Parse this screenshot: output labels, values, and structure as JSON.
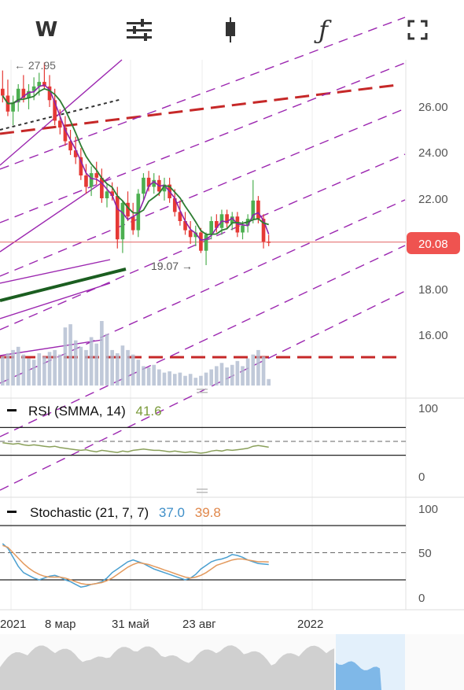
{
  "toolbar": {
    "interval_label": "W",
    "buttons": [
      {
        "name": "interval-button",
        "icon": "letter-w"
      },
      {
        "name": "indicators-button",
        "icon": "sliders-icon"
      },
      {
        "name": "chart-type-button",
        "icon": "candlestick-icon"
      },
      {
        "name": "function-button",
        "icon": "function-icon"
      },
      {
        "name": "fullscreen-button",
        "icon": "fullscreen-icon"
      }
    ]
  },
  "chart_data": [
    {
      "type": "candlestick",
      "title": "",
      "ylim": [
        13.8,
        28.2
      ],
      "yticks": [
        "26.00",
        "24.00",
        "22.00",
        "20.00",
        "18.00",
        "16.00"
      ],
      "ytick_values": [
        26,
        24,
        22,
        20,
        18,
        16
      ],
      "x_tick_labels": [
        "2021",
        "8 мар",
        "31 май",
        "23 авг",
        "2022"
      ],
      "last_price": "20.08",
      "last_price_value": 20.08,
      "high_marker": "← 27.95",
      "low_marker": "19.07 →",
      "colors": {
        "up": "#4caf50",
        "down": "#e53935",
        "ma_purple": "#8e24aa",
        "ma_green": "#2e7d32",
        "price_line": "#e57373",
        "volume": "#b0bcd0",
        "channel": "#9c27b0",
        "dashed_red": "#c62828"
      },
      "candles": [
        {
          "o": 26.8,
          "h": 27.6,
          "l": 26.2,
          "c": 26.5
        },
        {
          "o": 26.5,
          "h": 27.2,
          "l": 25.6,
          "c": 25.8
        },
        {
          "o": 25.8,
          "h": 26.5,
          "l": 25.2,
          "c": 26.2
        },
        {
          "o": 26.2,
          "h": 27.0,
          "l": 25.8,
          "c": 26.8
        },
        {
          "o": 26.8,
          "h": 27.4,
          "l": 26.2,
          "c": 26.4
        },
        {
          "o": 26.4,
          "h": 27.0,
          "l": 25.9,
          "c": 26.7
        },
        {
          "o": 26.7,
          "h": 27.3,
          "l": 26.3,
          "c": 26.9
        },
        {
          "o": 26.9,
          "h": 27.5,
          "l": 26.5,
          "c": 27.1
        },
        {
          "o": 27.1,
          "h": 27.95,
          "l": 26.8,
          "c": 26.9
        },
        {
          "o": 26.9,
          "h": 27.4,
          "l": 26.0,
          "c": 26.3
        },
        {
          "o": 26.3,
          "h": 26.8,
          "l": 25.2,
          "c": 25.4
        },
        {
          "o": 25.4,
          "h": 25.9,
          "l": 24.8,
          "c": 25.1
        },
        {
          "o": 25.1,
          "h": 25.6,
          "l": 24.3,
          "c": 24.5
        },
        {
          "o": 24.5,
          "h": 25.0,
          "l": 23.9,
          "c": 24.1
        },
        {
          "o": 24.1,
          "h": 24.7,
          "l": 23.5,
          "c": 23.8
        },
        {
          "o": 23.8,
          "h": 24.2,
          "l": 22.8,
          "c": 23.0
        },
        {
          "o": 23.0,
          "h": 23.5,
          "l": 22.2,
          "c": 22.5
        },
        {
          "o": 22.5,
          "h": 23.4,
          "l": 22.1,
          "c": 23.1
        },
        {
          "o": 23.1,
          "h": 23.6,
          "l": 22.6,
          "c": 22.9
        },
        {
          "o": 22.9,
          "h": 23.3,
          "l": 21.8,
          "c": 22.0
        },
        {
          "o": 22.0,
          "h": 22.6,
          "l": 21.6,
          "c": 22.3
        },
        {
          "o": 22.3,
          "h": 22.7,
          "l": 21.9,
          "c": 22.1
        },
        {
          "o": 22.1,
          "h": 22.5,
          "l": 19.8,
          "c": 20.2
        },
        {
          "o": 20.2,
          "h": 21.9,
          "l": 19.6,
          "c": 21.8
        },
        {
          "o": 21.8,
          "h": 22.3,
          "l": 21.0,
          "c": 21.2
        },
        {
          "o": 21.2,
          "h": 21.8,
          "l": 20.4,
          "c": 20.6
        },
        {
          "o": 20.6,
          "h": 22.4,
          "l": 20.3,
          "c": 22.2
        },
        {
          "o": 22.2,
          "h": 23.1,
          "l": 21.9,
          "c": 22.9
        },
        {
          "o": 22.9,
          "h": 23.2,
          "l": 22.3,
          "c": 22.5
        },
        {
          "o": 22.5,
          "h": 23.1,
          "l": 22.2,
          "c": 22.8
        },
        {
          "o": 22.8,
          "h": 23.0,
          "l": 22.1,
          "c": 22.3
        },
        {
          "o": 22.3,
          "h": 22.9,
          "l": 21.9,
          "c": 22.6
        },
        {
          "o": 22.6,
          "h": 22.9,
          "l": 21.8,
          "c": 22.0
        },
        {
          "o": 22.0,
          "h": 22.4,
          "l": 21.2,
          "c": 21.4
        },
        {
          "o": 21.4,
          "h": 21.9,
          "l": 20.8,
          "c": 21.0
        },
        {
          "o": 21.0,
          "h": 21.4,
          "l": 20.4,
          "c": 20.6
        },
        {
          "o": 20.6,
          "h": 21.0,
          "l": 20.0,
          "c": 20.3
        },
        {
          "o": 20.3,
          "h": 20.8,
          "l": 19.9,
          "c": 20.5
        },
        {
          "o": 20.5,
          "h": 20.7,
          "l": 19.6,
          "c": 19.7
        },
        {
          "o": 19.7,
          "h": 20.5,
          "l": 19.07,
          "c": 20.4
        },
        {
          "o": 20.4,
          "h": 21.2,
          "l": 20.2,
          "c": 21.0
        },
        {
          "o": 21.0,
          "h": 21.3,
          "l": 20.5,
          "c": 20.7
        },
        {
          "o": 20.7,
          "h": 21.5,
          "l": 20.4,
          "c": 21.3
        },
        {
          "o": 21.3,
          "h": 21.5,
          "l": 20.7,
          "c": 20.9
        },
        {
          "o": 20.9,
          "h": 21.4,
          "l": 20.6,
          "c": 21.2
        },
        {
          "o": 21.2,
          "h": 21.4,
          "l": 20.3,
          "c": 20.5
        },
        {
          "o": 20.5,
          "h": 21.0,
          "l": 20.2,
          "c": 20.8
        },
        {
          "o": 20.8,
          "h": 21.3,
          "l": 20.5,
          "c": 21.1
        },
        {
          "o": 21.1,
          "h": 22.8,
          "l": 20.9,
          "c": 21.9
        },
        {
          "o": 21.9,
          "h": 22.1,
          "l": 20.9,
          "c": 21.1
        },
        {
          "o": 21.1,
          "h": 21.3,
          "l": 19.8,
          "c": 20.1
        },
        {
          "o": 20.1,
          "h": 20.4,
          "l": 19.9,
          "c": 20.08
        }
      ],
      "volume": [
        0.45,
        0.5,
        0.55,
        0.6,
        0.48,
        0.42,
        0.4,
        0.5,
        0.45,
        0.52,
        0.55,
        0.48,
        0.9,
        0.95,
        0.7,
        0.6,
        0.55,
        0.75,
        0.65,
        1.0,
        0.8,
        0.55,
        0.5,
        0.62,
        0.55,
        0.48,
        0.4,
        0.3,
        0.28,
        0.32,
        0.25,
        0.2,
        0.22,
        0.18,
        0.2,
        0.15,
        0.18,
        0.12,
        0.15,
        0.2,
        0.25,
        0.3,
        0.35,
        0.28,
        0.32,
        0.38,
        0.3,
        0.42,
        0.48,
        0.55,
        0.45,
        0.1
      ]
    },
    {
      "type": "line",
      "name": "rsi-panel",
      "title": "RSI (SMMA, 14)",
      "value_label": "41.6",
      "ylim": [
        0,
        100
      ],
      "yticks": [
        "100",
        "0"
      ],
      "levels": [
        70,
        30
      ],
      "series": [
        {
          "values": [
            48,
            47,
            46,
            47,
            45,
            44,
            45,
            44,
            43,
            42,
            43,
            41,
            40,
            39,
            38,
            37,
            38,
            36,
            35,
            37,
            36,
            35,
            34,
            36,
            35,
            37,
            38,
            39,
            38,
            37,
            37,
            36,
            35,
            36,
            35,
            34,
            35,
            34,
            33,
            34,
            36,
            37,
            36,
            38,
            37,
            38,
            39,
            40,
            43,
            44,
            43,
            41.6
          ]
        }
      ]
    },
    {
      "type": "line",
      "name": "stochastic-panel",
      "title": "Stochastic (21, 7, 7)",
      "k_label": "37.0",
      "d_label": "39.8",
      "ylim": [
        0,
        100
      ],
      "yticks": [
        "100",
        "50",
        "0"
      ],
      "levels": [
        80,
        50,
        20
      ],
      "series": [
        {
          "values": [
            60,
            55,
            45,
            35,
            28,
            25,
            22,
            20,
            22,
            24,
            25,
            23,
            20,
            18,
            15,
            12,
            13,
            15,
            16,
            18,
            22,
            28,
            32,
            36,
            40,
            42,
            40,
            38,
            35,
            32,
            30,
            28,
            26,
            24,
            22,
            20,
            22,
            26,
            32,
            36,
            40,
            42,
            43,
            45,
            48,
            47,
            45,
            42,
            40,
            38,
            37.5,
            37.0
          ]
        },
        {
          "values": [
            58,
            56,
            50,
            44,
            38,
            33,
            29,
            26,
            24,
            23,
            23,
            23,
            22,
            20,
            18,
            16,
            15,
            15,
            16,
            17,
            19,
            22,
            26,
            30,
            34,
            37,
            39,
            38,
            37,
            35,
            33,
            31,
            29,
            27,
            25,
            23,
            22,
            23,
            25,
            28,
            32,
            36,
            38,
            40,
            42,
            43,
            43,
            42,
            41,
            40,
            40,
            39.8
          ]
        }
      ]
    }
  ],
  "time_axis": {
    "labels": [
      "2021",
      "8 мар",
      "31 май",
      "23 авг",
      "2022"
    ]
  }
}
